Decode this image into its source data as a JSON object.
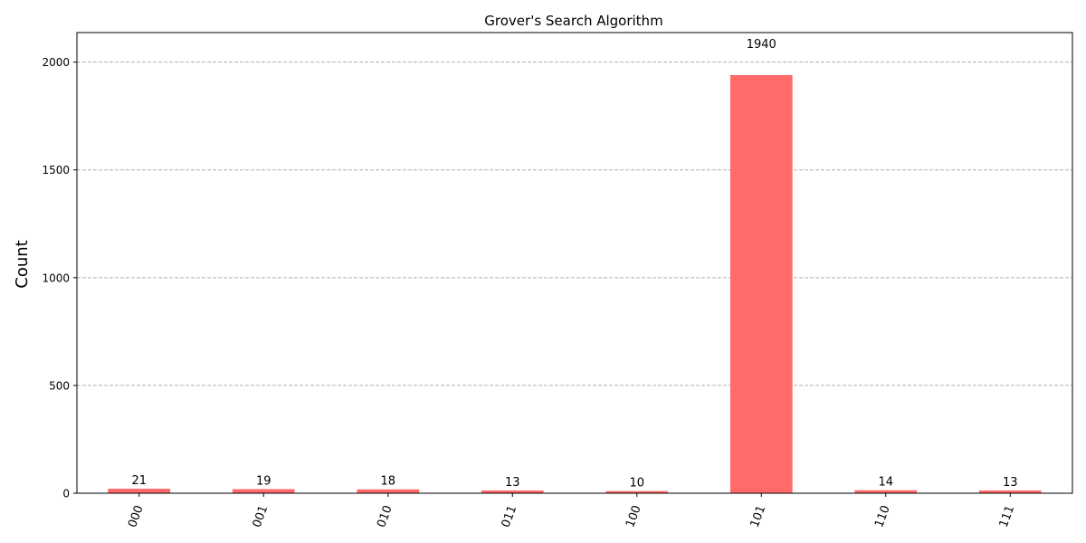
{
  "chart_data": {
    "type": "bar",
    "title": "Grover's Search Algorithm",
    "xlabel": "",
    "ylabel": "Count",
    "categories": [
      "000",
      "001",
      "010",
      "011",
      "100",
      "101",
      "110",
      "111"
    ],
    "values": [
      21,
      19,
      18,
      13,
      10,
      1940,
      14,
      13
    ],
    "data_labels": [
      "21",
      "19",
      "18",
      "13",
      "10",
      "1940",
      "14",
      "13"
    ],
    "ylim": [
      0,
      2137
    ],
    "yticks": [
      0,
      500,
      1000,
      1500,
      2000
    ],
    "ytick_labels": [
      "0",
      "500",
      "1000",
      "1500",
      "2000"
    ],
    "grid": "y-dashed",
    "bar_color": "#ff6b6b",
    "grid_color": "#b0b0b0"
  }
}
